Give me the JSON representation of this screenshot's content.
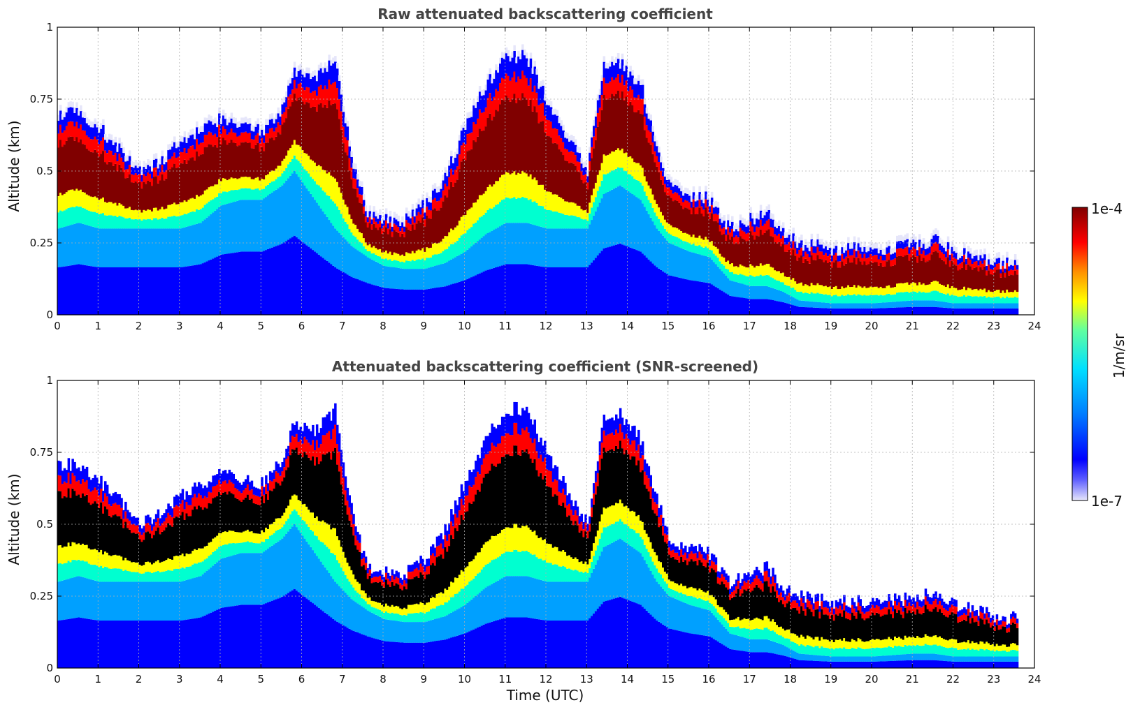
{
  "chart_data": [
    {
      "type": "heatmap",
      "title": "Raw attenuated backscattering coefficient",
      "xlabel": "",
      "ylabel": "Altitude (km)",
      "xlim": [
        0,
        24
      ],
      "ylim": [
        0,
        1
      ],
      "xticks": [
        "0",
        "1",
        "2",
        "3",
        "4",
        "5",
        "6",
        "7",
        "8",
        "9",
        "10",
        "11",
        "12",
        "13",
        "14",
        "15",
        "16",
        "17",
        "18",
        "19",
        "20",
        "21",
        "22",
        "23",
        "24"
      ],
      "yticks": [
        "0",
        "0.25",
        "0.5",
        "0.75",
        "1"
      ],
      "grid": true,
      "layer_profile": {
        "time_utc": [
          0,
          0.5,
          1,
          1.5,
          2,
          2.5,
          3,
          3.5,
          4,
          4.5,
          5,
          5.5,
          5.8,
          6.3,
          6.8,
          7.2,
          7.6,
          8,
          8.5,
          9,
          9.5,
          10,
          10.5,
          11,
          11.5,
          12,
          12.5,
          13,
          13.4,
          13.8,
          14.3,
          14.7,
          15,
          15.5,
          16,
          16.5,
          17,
          17.4,
          17.8,
          18.2,
          19,
          20,
          21,
          21.5,
          22,
          22.5,
          23,
          23.6
        ],
        "cloud_top_km": [
          0.7,
          0.71,
          0.65,
          0.58,
          0.5,
          0.53,
          0.6,
          0.64,
          0.68,
          0.65,
          0.64,
          0.72,
          0.85,
          0.82,
          0.9,
          0.55,
          0.35,
          0.33,
          0.33,
          0.38,
          0.48,
          0.65,
          0.8,
          0.9,
          0.9,
          0.75,
          0.62,
          0.5,
          0.88,
          0.88,
          0.8,
          0.6,
          0.45,
          0.42,
          0.4,
          0.3,
          0.33,
          0.35,
          0.28,
          0.25,
          0.23,
          0.23,
          0.24,
          0.26,
          0.22,
          0.2,
          0.18,
          0.17
        ],
        "cloud_base_km": [
          0.3,
          0.32,
          0.3,
          0.3,
          0.3,
          0.3,
          0.3,
          0.32,
          0.38,
          0.4,
          0.4,
          0.45,
          0.5,
          0.4,
          0.3,
          0.24,
          0.2,
          0.17,
          0.16,
          0.16,
          0.18,
          0.22,
          0.28,
          0.32,
          0.32,
          0.3,
          0.3,
          0.3,
          0.42,
          0.45,
          0.4,
          0.3,
          0.25,
          0.22,
          0.2,
          0.12,
          0.1,
          0.1,
          0.08,
          0.05,
          0.04,
          0.04,
          0.05,
          0.05,
          0.04,
          0.04,
          0.04,
          0.04
        ]
      }
    },
    {
      "type": "heatmap",
      "title": "Attenuated backscattering coefficient (SNR-screened)",
      "xlabel": "Time (UTC)",
      "ylabel": "Altitude (km)",
      "xlim": [
        0,
        24
      ],
      "ylim": [
        0,
        1
      ],
      "xticks": [
        "0",
        "1",
        "2",
        "3",
        "4",
        "5",
        "6",
        "7",
        "8",
        "9",
        "10",
        "11",
        "12",
        "13",
        "14",
        "15",
        "16",
        "17",
        "18",
        "19",
        "20",
        "21",
        "22",
        "23",
        "24"
      ],
      "yticks": [
        "0",
        "0.25",
        "0.5",
        "0.75",
        "1"
      ],
      "grid": true,
      "screened": true
    }
  ],
  "colorbar": {
    "label": "1/m/sr",
    "max_label": "1e-4",
    "min_label": "1e-7",
    "colors": [
      "#e6e6fa",
      "#0000ff",
      "#00a0ff",
      "#00ffd0",
      "#ffff00",
      "#ff8000",
      "#ff0000",
      "#800000"
    ]
  }
}
